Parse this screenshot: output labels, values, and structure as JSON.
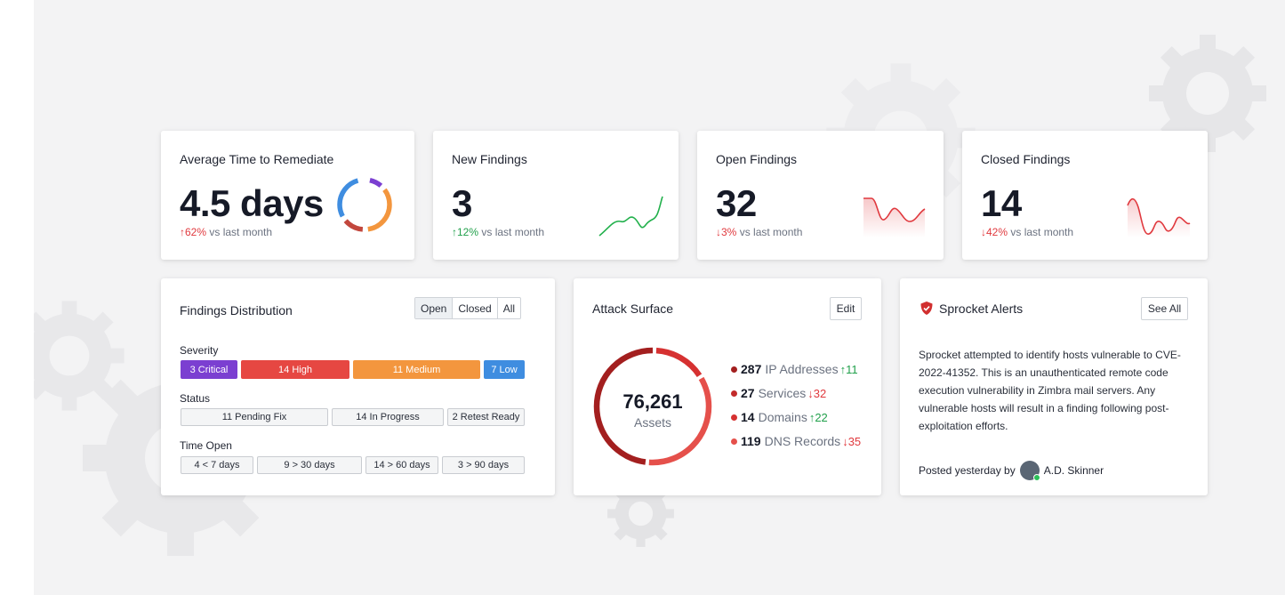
{
  "colors": {
    "critical": "#7b3fd1",
    "high": "#e64742",
    "medium": "#f3963e",
    "low": "#3f8de0",
    "up_good": "#21a04b",
    "bad": "#e0393e"
  },
  "stats": [
    {
      "title": "Average Time to Remediate",
      "value": "4.5 days",
      "arrow": "↑",
      "change": "62%",
      "suffix": "vs last month"
    },
    {
      "title": "New Findings",
      "value": "3",
      "arrow": "↑",
      "change": "12%",
      "suffix": "vs last month"
    },
    {
      "title": "Open Findings",
      "value": "32",
      "arrow": "↓",
      "change": "3%",
      "suffix": "vs last month"
    },
    {
      "title": "Closed Findings",
      "value": "14",
      "arrow": "↓",
      "change": "42%",
      "suffix": "vs last month"
    }
  ],
  "distribution": {
    "title": "Findings Distribution",
    "filters": [
      "Open",
      "Closed",
      "All"
    ],
    "active_filter": "Open",
    "severity_label": "Severity",
    "severity": [
      "3 Critical",
      "14 High",
      "11 Medium",
      "7 Low"
    ],
    "status_label": "Status",
    "status": [
      "11 Pending Fix",
      "14 In Progress",
      "2 Retest Ready"
    ],
    "time_label": "Time Open",
    "time_open": [
      "4 < 7 days",
      "9 > 30 days",
      "14 > 60 days",
      "3 > 90 days"
    ]
  },
  "attack_surface": {
    "title": "Attack Surface",
    "edit_label": "Edit",
    "total": "76,261",
    "total_label": "Assets",
    "items": [
      {
        "count": "287",
        "label": "IP Addresses",
        "arrow": "↑",
        "change": "11",
        "dot": "#a31f1f"
      },
      {
        "count": "27",
        "label": "Services",
        "arrow": "↓",
        "change": "32",
        "dot": "#c22a2a"
      },
      {
        "count": "14",
        "label": "Domains",
        "arrow": "↑",
        "change": "22",
        "dot": "#d63131"
      },
      {
        "count": "119",
        "label": "DNS Records",
        "arrow": "↓",
        "change": "35",
        "dot": "#e5504b"
      }
    ]
  },
  "alerts": {
    "title": "Sprocket Alerts",
    "see_all_label": "See All",
    "body": "Sprocket attempted to identify hosts vulnerable to CVE-2022-41352. This is an unauthenticated remote code execution vulnerability in Zimbra mail servers. Any vulnerable hosts will result in a finding following post-exploitation efforts.",
    "posted_prefix": "Posted yesterday by",
    "author": "A.D. Skinner"
  }
}
